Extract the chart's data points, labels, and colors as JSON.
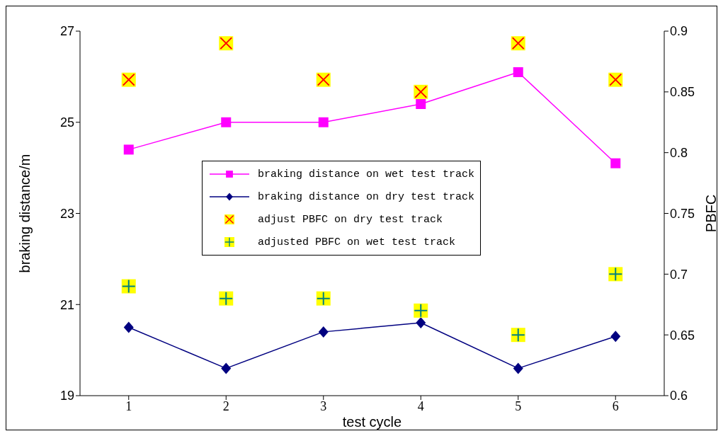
{
  "chart_data": {
    "type": "line",
    "xlabel": "test cycle",
    "ylabel": "braking distance/m",
    "y2label": "PBFC",
    "categories": [
      "1",
      "2",
      "3",
      "4",
      "5",
      "6"
    ],
    "series": [
      {
        "name": "braking distance on wet test track",
        "color": "#ff00ff",
        "marker": "square",
        "values": [
          24.4,
          25.0,
          25.0,
          25.4,
          26.1,
          24.1
        ]
      },
      {
        "name": "braking distance on dry test track",
        "color": "#000080",
        "marker": "diamond",
        "values": [
          20.5,
          19.6,
          20.4,
          20.6,
          19.6,
          20.3
        ]
      },
      {
        "name": "adjust PBFC on dry test track",
        "type": "scatter",
        "axis": "y2",
        "color": "#ff0000",
        "marker": "cross",
        "values": [
          0.86,
          0.89,
          0.86,
          0.85,
          0.89,
          0.86
        ]
      },
      {
        "name": "adjusted PBFC on wet test track",
        "type": "scatter",
        "axis": "y2",
        "color": "#008080",
        "marker": "plus",
        "values": [
          0.69,
          0.68,
          0.68,
          0.67,
          0.65,
          0.7
        ]
      }
    ],
    "ylim": [
      19,
      27
    ],
    "yticks": [
      19,
      21,
      23,
      25,
      27
    ],
    "y2lim": [
      0.6,
      0.9
    ],
    "y2ticks": [
      0.6,
      0.65,
      0.7,
      0.75,
      0.8,
      0.85,
      0.9
    ],
    "grid": false,
    "legend": "center"
  }
}
